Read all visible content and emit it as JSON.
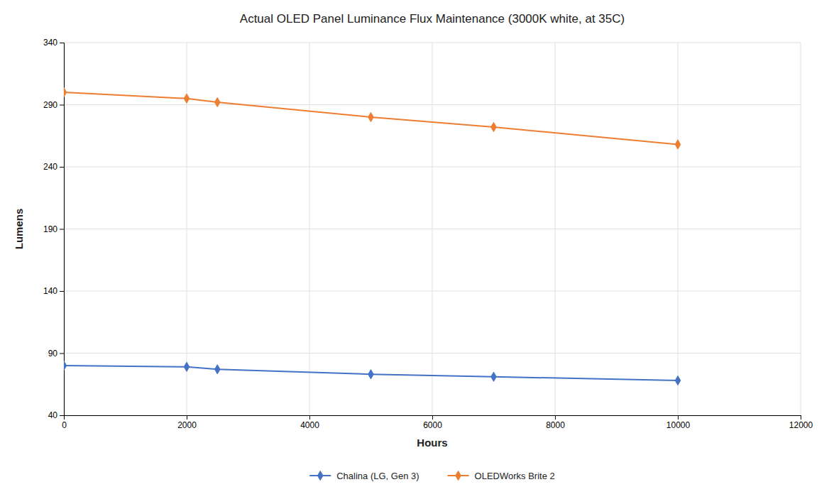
{
  "chart_data": {
    "type": "line",
    "title": "Actual OLED Panel Luminance Flux Maintenance (3000K white, at 35C)",
    "xlabel": "Hours",
    "ylabel": "Lumens",
    "x": [
      0,
      2000,
      2500,
      5000,
      7000,
      10000
    ],
    "series": [
      {
        "name": "Chalina (LG, Gen 3)",
        "color": "#4472C4",
        "marker": "diamond",
        "values": [
          80,
          79,
          77,
          73,
          71,
          68
        ]
      },
      {
        "name": "OLEDWorks Brite 2",
        "color": "#ED7D31",
        "marker": "diamond",
        "values": [
          300,
          295,
          292,
          280,
          272,
          258
        ]
      }
    ],
    "xlim": [
      0,
      12000
    ],
    "ylim": [
      40,
      340
    ],
    "xticks": [
      0,
      2000,
      4000,
      6000,
      8000,
      10000,
      12000
    ],
    "yticks": [
      40,
      90,
      140,
      190,
      240,
      290,
      340
    ],
    "grid": true,
    "legend": "bottom"
  }
}
